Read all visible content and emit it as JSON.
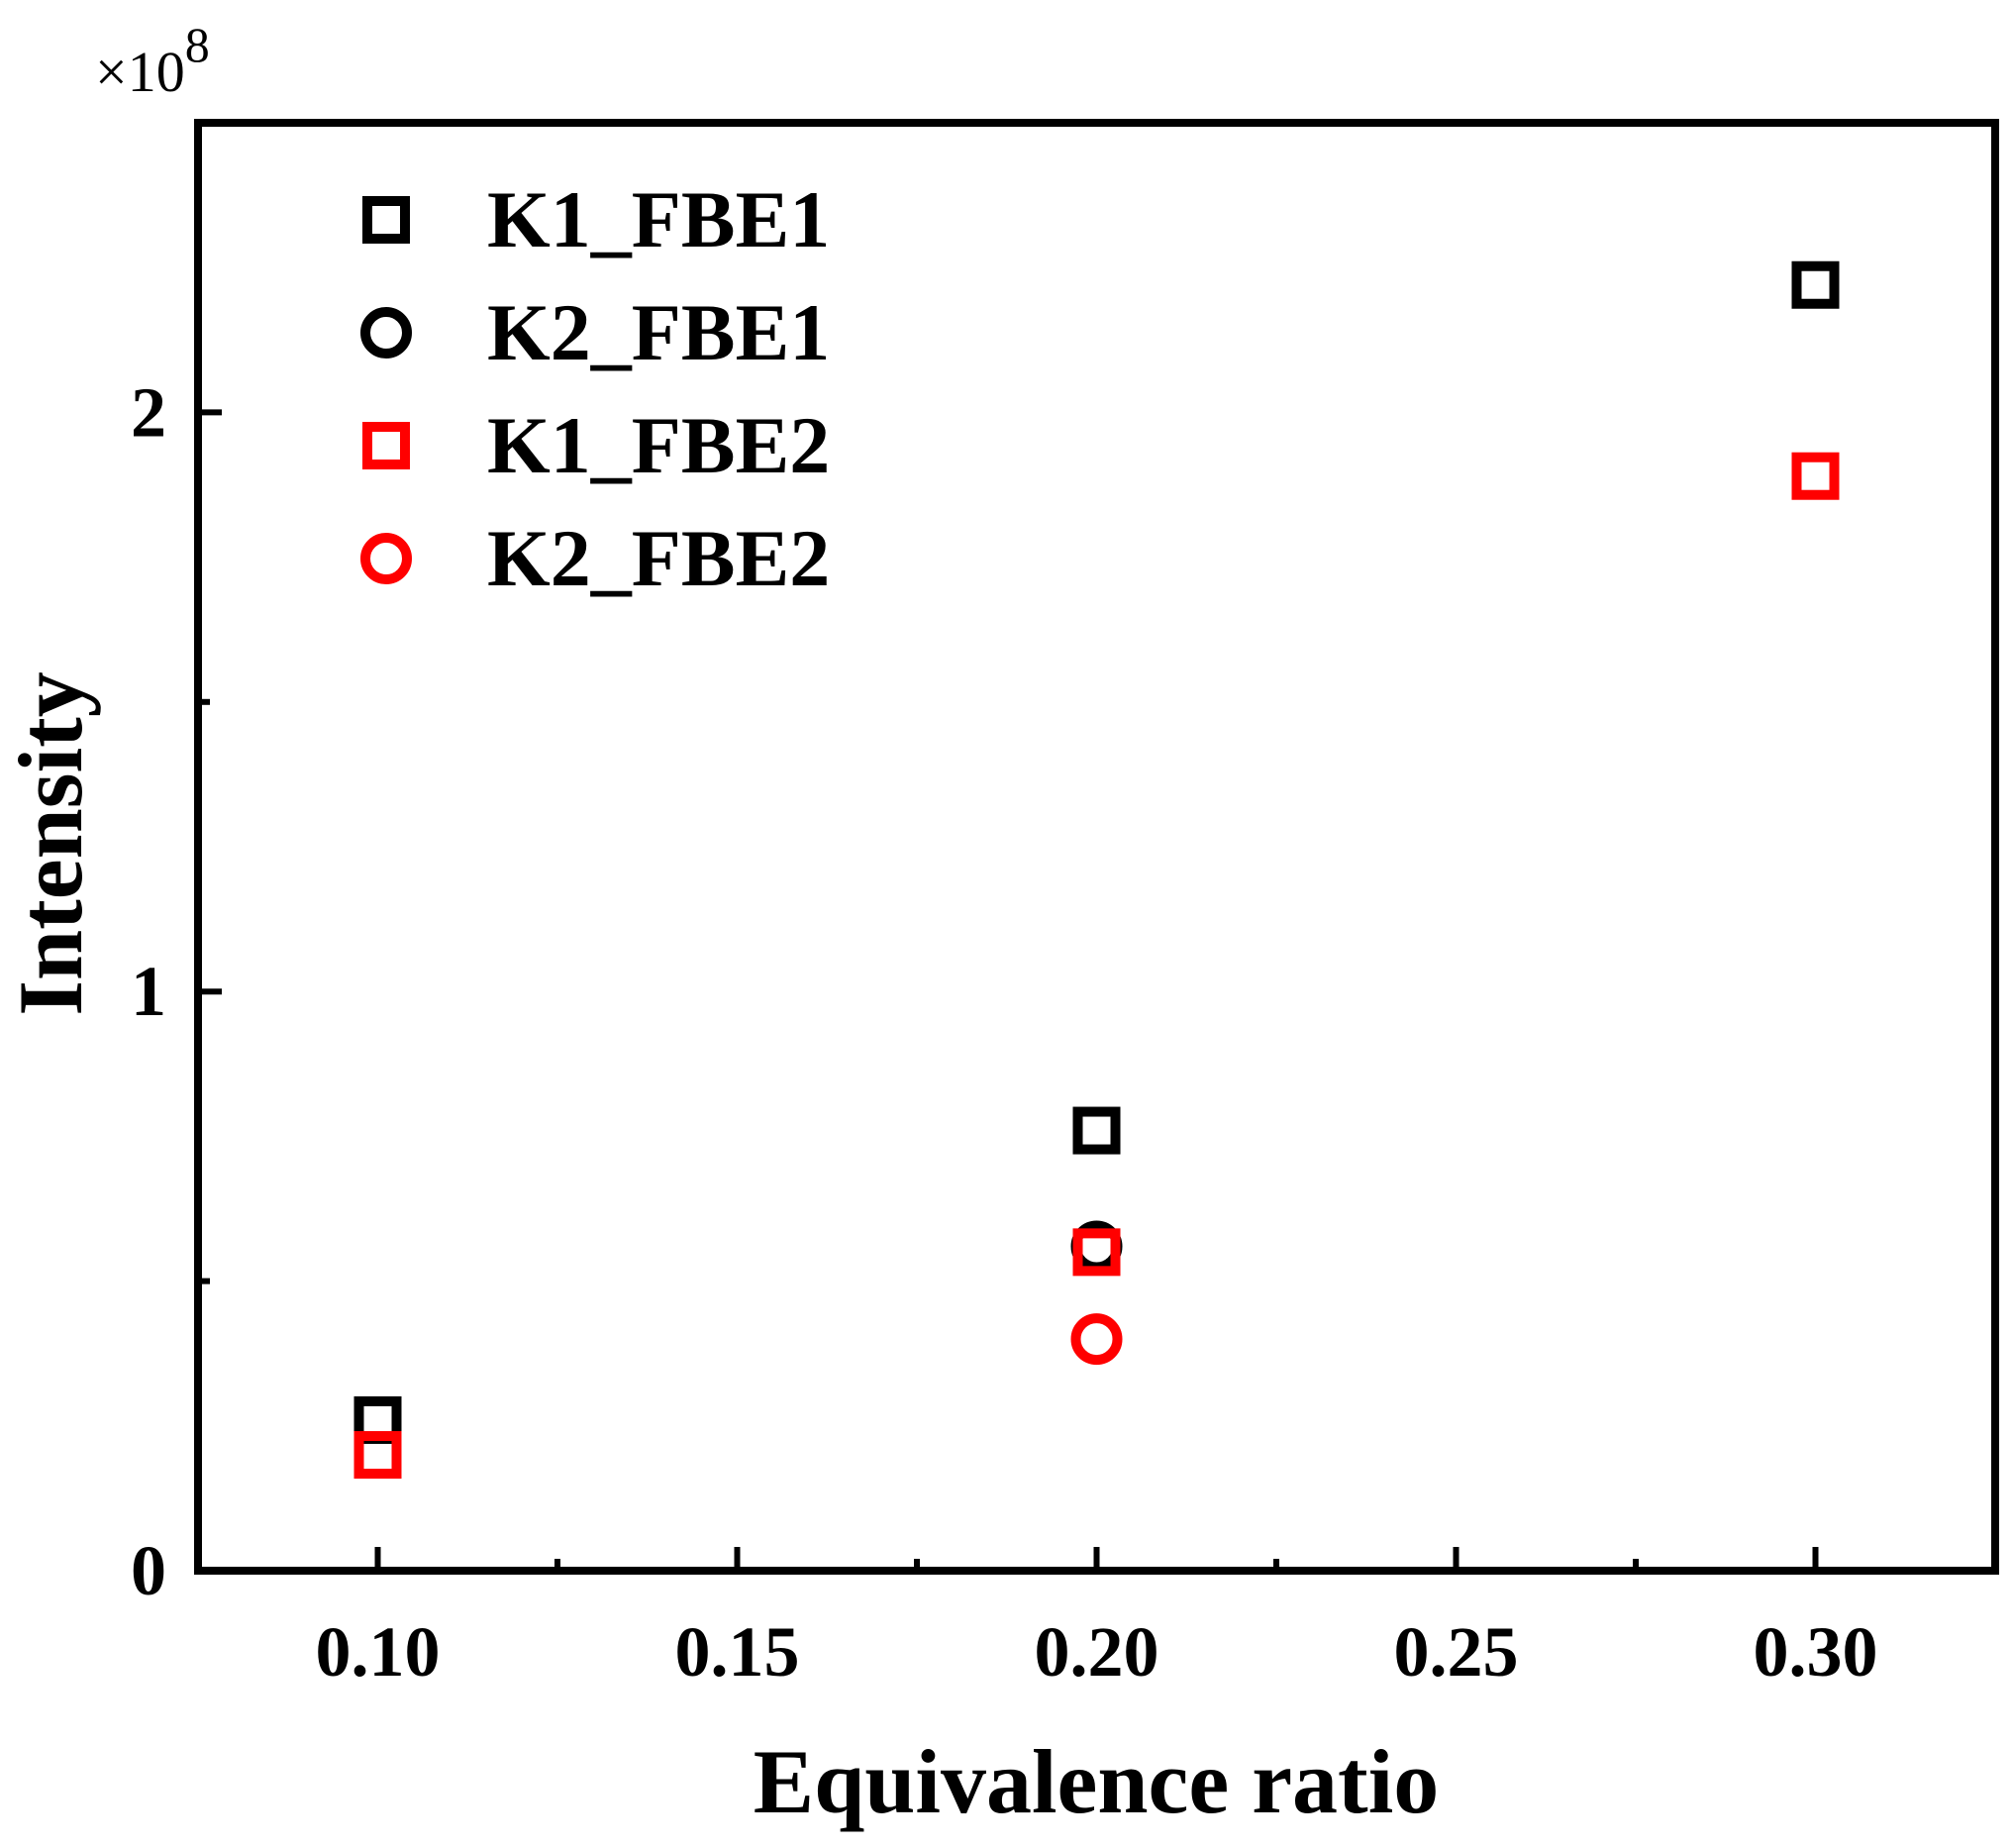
{
  "chart_data": {
    "type": "scatter",
    "title": "",
    "xlabel": "Equivalence ratio",
    "ylabel": "Intensity",
    "y_multiplier_base": "×10",
    "y_multiplier_exp": "8",
    "xlim": [
      0.075,
      0.325
    ],
    "ylim": [
      0,
      2.5
    ],
    "x_ticks": [
      0.1,
      0.15,
      0.2,
      0.25,
      0.3
    ],
    "x_tick_labels": [
      "0.10",
      "0.15",
      "0.20",
      "0.25",
      "0.30"
    ],
    "x_minor_ticks": [
      0.125,
      0.175,
      0.225,
      0.275
    ],
    "y_ticks": [
      0,
      1,
      2
    ],
    "y_tick_labels": [
      "0",
      "1",
      "2"
    ],
    "y_minor_ticks": [
      0.5,
      1.5
    ],
    "legend_position": "top-left",
    "series": [
      {
        "name": "K1_FBE1",
        "marker": "square",
        "color": "#000000",
        "x": [
          0.1,
          0.2,
          0.3
        ],
        "y": [
          0.26,
          0.76,
          2.22
        ]
      },
      {
        "name": "K2_FBE1",
        "marker": "circle",
        "color": "#000000",
        "x": [
          0.2
        ],
        "y": [
          0.56
        ]
      },
      {
        "name": "K1_FBE2",
        "marker": "square",
        "color": "#ff0000",
        "x": [
          0.1,
          0.2,
          0.3
        ],
        "y": [
          0.2,
          0.55,
          1.89
        ]
      },
      {
        "name": "K2_FBE2",
        "marker": "circle",
        "color": "#ff0000",
        "x": [
          0.2
        ],
        "y": [
          0.4
        ]
      }
    ]
  }
}
